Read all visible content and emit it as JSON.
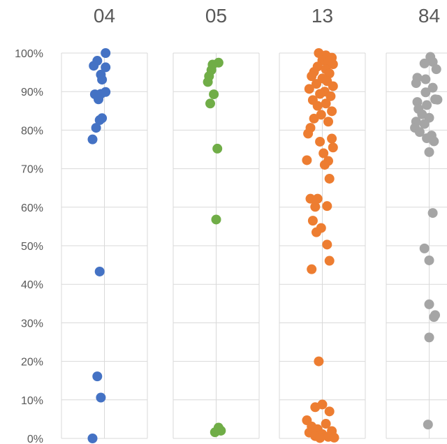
{
  "chart_data": {
    "type": "scatter",
    "title": "",
    "xlabel": "",
    "ylabel": "",
    "ylim": [
      0,
      1
    ],
    "y_ticks": [
      0,
      0.1,
      0.2,
      0.3,
      0.4,
      0.5,
      0.6,
      0.7,
      0.8,
      0.9,
      1.0
    ],
    "y_tick_labels": [
      "0%",
      "10%",
      "20%",
      "30%",
      "40%",
      "50%",
      "60%",
      "70%",
      "80%",
      "90%",
      "100%"
    ],
    "grid": true,
    "legend": "none",
    "series": [
      {
        "label": "04",
        "color": "#4472C4",
        "points": [
          {
            "jitter": 0.1,
            "y": 1.0
          },
          {
            "jitter": -0.6,
            "y": 0.98
          },
          {
            "jitter": -0.9,
            "y": 0.967
          },
          {
            "jitter": 0.1,
            "y": 0.963
          },
          {
            "jitter": -0.3,
            "y": 0.944
          },
          {
            "jitter": -0.2,
            "y": 0.931
          },
          {
            "jitter": -0.8,
            "y": 0.893
          },
          {
            "jitter": -0.3,
            "y": 0.894
          },
          {
            "jitter": 0.1,
            "y": 0.899
          },
          {
            "jitter": -0.5,
            "y": 0.88
          },
          {
            "jitter": -0.2,
            "y": 0.831
          },
          {
            "jitter": -0.4,
            "y": 0.826
          },
          {
            "jitter": -0.7,
            "y": 0.806
          },
          {
            "jitter": -1.0,
            "y": 0.776
          },
          {
            "jitter": -0.4,
            "y": 0.433
          },
          {
            "jitter": -0.6,
            "y": 0.161
          },
          {
            "jitter": -0.3,
            "y": 0.106
          },
          {
            "jitter": -1.0,
            "y": 0.0
          }
        ]
      },
      {
        "label": "05",
        "color": "#70AD47",
        "points": [
          {
            "jitter": 0.2,
            "y": 0.975
          },
          {
            "jitter": -0.3,
            "y": 0.97
          },
          {
            "jitter": -0.4,
            "y": 0.956
          },
          {
            "jitter": -0.6,
            "y": 0.94
          },
          {
            "jitter": -0.7,
            "y": 0.925
          },
          {
            "jitter": -0.2,
            "y": 0.893
          },
          {
            "jitter": -0.5,
            "y": 0.869
          },
          {
            "jitter": 0.1,
            "y": 0.752
          },
          {
            "jitter": 0.0,
            "y": 0.568
          },
          {
            "jitter": 0.2,
            "y": 0.028
          },
          {
            "jitter": 0.4,
            "y": 0.02
          },
          {
            "jitter": -0.1,
            "y": 0.016
          }
        ]
      },
      {
        "label": "13",
        "color": "#ED7D31",
        "points": [
          {
            "jitter": -0.3,
            "y": 1.0
          },
          {
            "jitter": 0.3,
            "y": 0.994
          },
          {
            "jitter": 0.8,
            "y": 0.988
          },
          {
            "jitter": 0.0,
            "y": 0.981
          },
          {
            "jitter": 0.5,
            "y": 0.977
          },
          {
            "jitter": 0.9,
            "y": 0.971
          },
          {
            "jitter": -0.4,
            "y": 0.965
          },
          {
            "jitter": 0.3,
            "y": 0.958
          },
          {
            "jitter": -0.7,
            "y": 0.951
          },
          {
            "jitter": 0.6,
            "y": 0.947
          },
          {
            "jitter": -0.9,
            "y": 0.94
          },
          {
            "jitter": 0.0,
            "y": 0.934
          },
          {
            "jitter": 0.4,
            "y": 0.927
          },
          {
            "jitter": -0.5,
            "y": 0.92
          },
          {
            "jitter": 0.9,
            "y": 0.914
          },
          {
            "jitter": -1.1,
            "y": 0.907
          },
          {
            "jitter": 0.2,
            "y": 0.9
          },
          {
            "jitter": -0.2,
            "y": 0.894
          },
          {
            "jitter": 0.7,
            "y": 0.888
          },
          {
            "jitter": -0.8,
            "y": 0.878
          },
          {
            "jitter": 0.3,
            "y": 0.869
          },
          {
            "jitter": -0.4,
            "y": 0.863
          },
          {
            "jitter": 0.8,
            "y": 0.849
          },
          {
            "jitter": -0.1,
            "y": 0.84
          },
          {
            "jitter": -0.7,
            "y": 0.83
          },
          {
            "jitter": 0.5,
            "y": 0.822
          },
          {
            "jitter": -1.0,
            "y": 0.806
          },
          {
            "jitter": -1.2,
            "y": 0.791
          },
          {
            "jitter": 0.8,
            "y": 0.778
          },
          {
            "jitter": -0.2,
            "y": 0.77
          },
          {
            "jitter": 0.9,
            "y": 0.755
          },
          {
            "jitter": 0.1,
            "y": 0.74
          },
          {
            "jitter": -1.3,
            "y": 0.722
          },
          {
            "jitter": 0.5,
            "y": 0.72
          },
          {
            "jitter": 0.2,
            "y": 0.71
          },
          {
            "jitter": 0.6,
            "y": 0.674
          },
          {
            "jitter": -1.0,
            "y": 0.622
          },
          {
            "jitter": -0.4,
            "y": 0.622
          },
          {
            "jitter": -0.6,
            "y": 0.601
          },
          {
            "jitter": 0.4,
            "y": 0.603
          },
          {
            "jitter": -0.8,
            "y": 0.565
          },
          {
            "jitter": -0.1,
            "y": 0.546
          },
          {
            "jitter": -0.5,
            "y": 0.535
          },
          {
            "jitter": 0.4,
            "y": 0.503
          },
          {
            "jitter": 0.6,
            "y": 0.461
          },
          {
            "jitter": -0.9,
            "y": 0.439
          },
          {
            "jitter": -0.3,
            "y": 0.2
          },
          {
            "jitter": 0.0,
            "y": 0.088
          },
          {
            "jitter": -0.6,
            "y": 0.081
          },
          {
            "jitter": 0.6,
            "y": 0.07
          },
          {
            "jitter": -1.3,
            "y": 0.047
          },
          {
            "jitter": 0.3,
            "y": 0.038
          },
          {
            "jitter": -0.9,
            "y": 0.031
          },
          {
            "jitter": -0.4,
            "y": 0.024
          },
          {
            "jitter": 0.8,
            "y": 0.019
          },
          {
            "jitter": -1.1,
            "y": 0.015
          },
          {
            "jitter": 0.0,
            "y": 0.011
          },
          {
            "jitter": -0.6,
            "y": 0.006
          },
          {
            "jitter": 0.5,
            "y": 0.004
          },
          {
            "jitter": 1.0,
            "y": 0.002
          },
          {
            "jitter": -0.2,
            "y": 0.001
          }
        ]
      },
      {
        "label": "84",
        "color": "#A5A5A5",
        "points": [
          {
            "jitter": 0.1,
            "y": 0.99
          },
          {
            "jitter": 0.3,
            "y": 0.977
          },
          {
            "jitter": -0.4,
            "y": 0.973
          },
          {
            "jitter": 0.6,
            "y": 0.958
          },
          {
            "jitter": -1.0,
            "y": 0.936
          },
          {
            "jitter": -0.3,
            "y": 0.932
          },
          {
            "jitter": -1.1,
            "y": 0.922
          },
          {
            "jitter": 0.3,
            "y": 0.91
          },
          {
            "jitter": -0.3,
            "y": 0.898
          },
          {
            "jitter": 0.5,
            "y": 0.88
          },
          {
            "jitter": 0.7,
            "y": 0.879
          },
          {
            "jitter": -1.0,
            "y": 0.873
          },
          {
            "jitter": -0.2,
            "y": 0.865
          },
          {
            "jitter": -0.9,
            "y": 0.855
          },
          {
            "jitter": -0.6,
            "y": 0.841
          },
          {
            "jitter": 0.0,
            "y": 0.832
          },
          {
            "jitter": -1.1,
            "y": 0.822
          },
          {
            "jitter": -0.4,
            "y": 0.816
          },
          {
            "jitter": -1.2,
            "y": 0.806
          },
          {
            "jitter": -0.8,
            "y": 0.795
          },
          {
            "jitter": 0.2,
            "y": 0.786
          },
          {
            "jitter": -0.2,
            "y": 0.779
          },
          {
            "jitter": 0.4,
            "y": 0.771
          },
          {
            "jitter": 0.0,
            "y": 0.743
          },
          {
            "jitter": 0.3,
            "y": 0.585
          },
          {
            "jitter": -0.4,
            "y": 0.493
          },
          {
            "jitter": 0.0,
            "y": 0.462
          },
          {
            "jitter": 0.0,
            "y": 0.348
          },
          {
            "jitter": 0.5,
            "y": 0.32
          },
          {
            "jitter": 0.4,
            "y": 0.315
          },
          {
            "jitter": 0.0,
            "y": 0.262
          },
          {
            "jitter": -0.1,
            "y": 0.036
          }
        ]
      }
    ]
  }
}
